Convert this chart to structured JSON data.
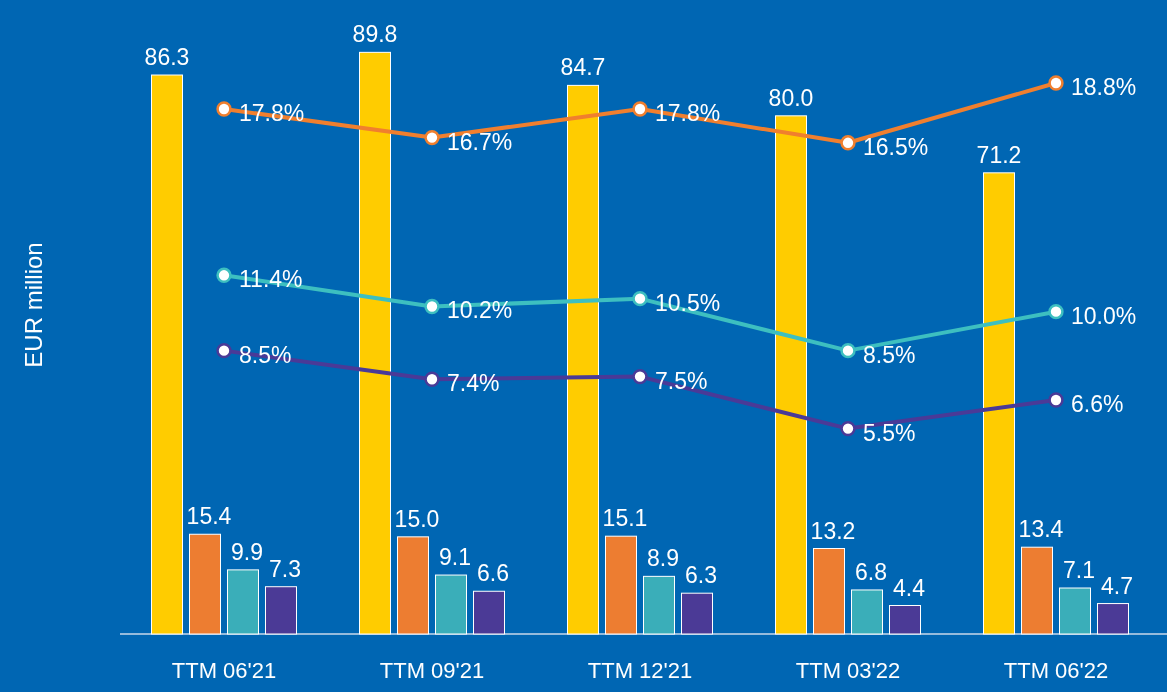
{
  "chart_data": {
    "type": "bar",
    "ylabel": "EUR million",
    "categories": [
      "TTM 06'21",
      "TTM 09'21",
      "TTM 12'21",
      "TTM 03'22",
      "TTM 06'22"
    ],
    "tick_labels": "x",
    "marker": "circle",
    "line_style": "solid",
    "series": [
      {
        "color": "#ffcc00",
        "values": [
          86.3,
          89.8,
          84.7,
          80.0,
          71.2
        ],
        "value_labels": [
          "86.3",
          "89.8",
          "84.7",
          "80.0",
          "71.2"
        ]
      },
      {
        "color": "#ed7d31",
        "values": [
          15.4,
          15.0,
          15.1,
          13.2,
          13.4
        ],
        "value_labels": [
          "15.4",
          "15.0",
          "15.1",
          "13.2",
          "13.4"
        ]
      },
      {
        "color": "#3aaeb9",
        "values": [
          9.9,
          9.1,
          8.9,
          6.8,
          7.1
        ],
        "value_labels": [
          "9.9",
          "9.1",
          "8.9",
          "6.8",
          "7.1"
        ]
      },
      {
        "color": "#4b3a96",
        "values": [
          7.3,
          6.6,
          6.3,
          4.4,
          4.7
        ],
        "value_labels": [
          "7.3",
          "6.6",
          "6.3",
          "4.4",
          "4.7"
        ]
      },
      {
        "type": "line",
        "axis": "y2",
        "color": "#f07f2e",
        "values": [
          17.8,
          16.7,
          17.8,
          16.5,
          18.8
        ],
        "value_labels": [
          "17.8%",
          "16.7%",
          "17.8%",
          "16.5%",
          "18.8%"
        ]
      },
      {
        "type": "line",
        "axis": "y2",
        "color": "#3dbfc0",
        "values": [
          11.4,
          10.2,
          10.5,
          8.5,
          10.0
        ],
        "value_labels": [
          "11.4%",
          "10.2%",
          "10.5%",
          "8.5%",
          "10.0%"
        ]
      },
      {
        "type": "line",
        "axis": "y2",
        "color": "#4a3a97",
        "values": [
          8.5,
          7.4,
          7.5,
          5.5,
          6.6
        ],
        "value_labels": [
          "8.5%",
          "7.4%",
          "7.5%",
          "5.5%",
          "6.6%"
        ]
      }
    ]
  }
}
